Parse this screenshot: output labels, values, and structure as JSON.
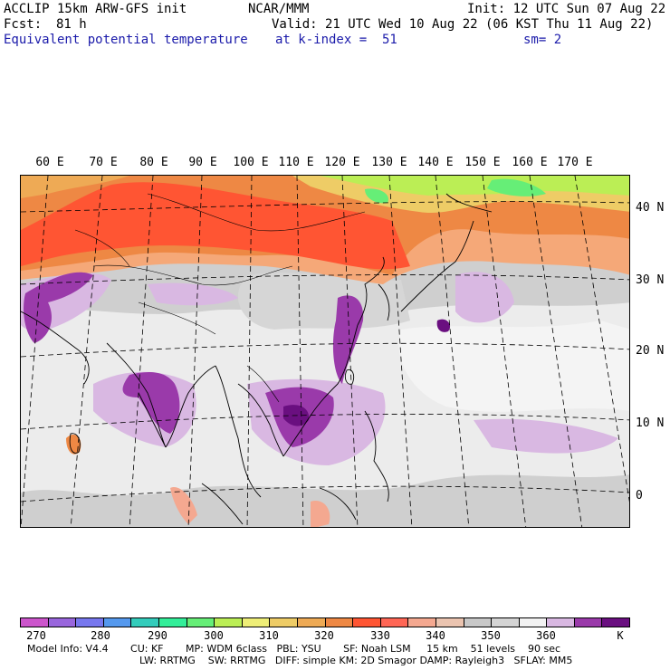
{
  "header": {
    "model": "ACCLIP 15km ARW-GFS init",
    "org": "NCAR/MMM",
    "init": "Init: 12 UTC Sun 07 Aug 22",
    "fcst_label": "Fcst:",
    "fcst_value": "81 h",
    "valid": "Valid: 21 UTC Wed 10 Aug 22 (06 KST Thu 11 Aug 22)",
    "field": "Equivalent potential temperature",
    "level": "at k-index =  51",
    "smoothing": "sm= 2"
  },
  "map": {
    "lon_labels": [
      "60 E",
      "70 E",
      "80 E",
      "90 E",
      "100 E",
      "110 E",
      "120 E",
      "130 E",
      "140 E",
      "150 E",
      "160 E",
      "170 E"
    ],
    "lat_labels": [
      "40 N",
      "30 N",
      "20 N",
      "10 N",
      "0"
    ]
  },
  "colorbar": {
    "colors": [
      "#cc55cc",
      "#9966dd",
      "#7777ee",
      "#5599ee",
      "#33ccbb",
      "#33ee99",
      "#66ee77",
      "#bbee55",
      "#eeee77",
      "#eecc66",
      "#eeaa55",
      "#ee8844",
      "#ff5533",
      "#ff6655",
      "#f4a890",
      "#ebc4b0",
      "#c8c8c8",
      "#d4d4d4",
      "#f2f2f2",
      "#d9b8e2",
      "#9a3aaa",
      "#6a0f80"
    ],
    "labels": [
      "270",
      "280",
      "290",
      "300",
      "310",
      "320",
      "330",
      "340",
      "350",
      "360"
    ],
    "unit": "K"
  },
  "footer": {
    "line1": "Model Info: V4.4       CU: KF       MP: WDM 6class   PBL: YSU       SF: Noah LSM     15 km    51 levels    90 sec",
    "line2": "LW: RRTMG    SW: RRTMG   DIFF: simple KM: 2D Smagor DAMP: Rayleigh3   SFLAY: MM5"
  }
}
